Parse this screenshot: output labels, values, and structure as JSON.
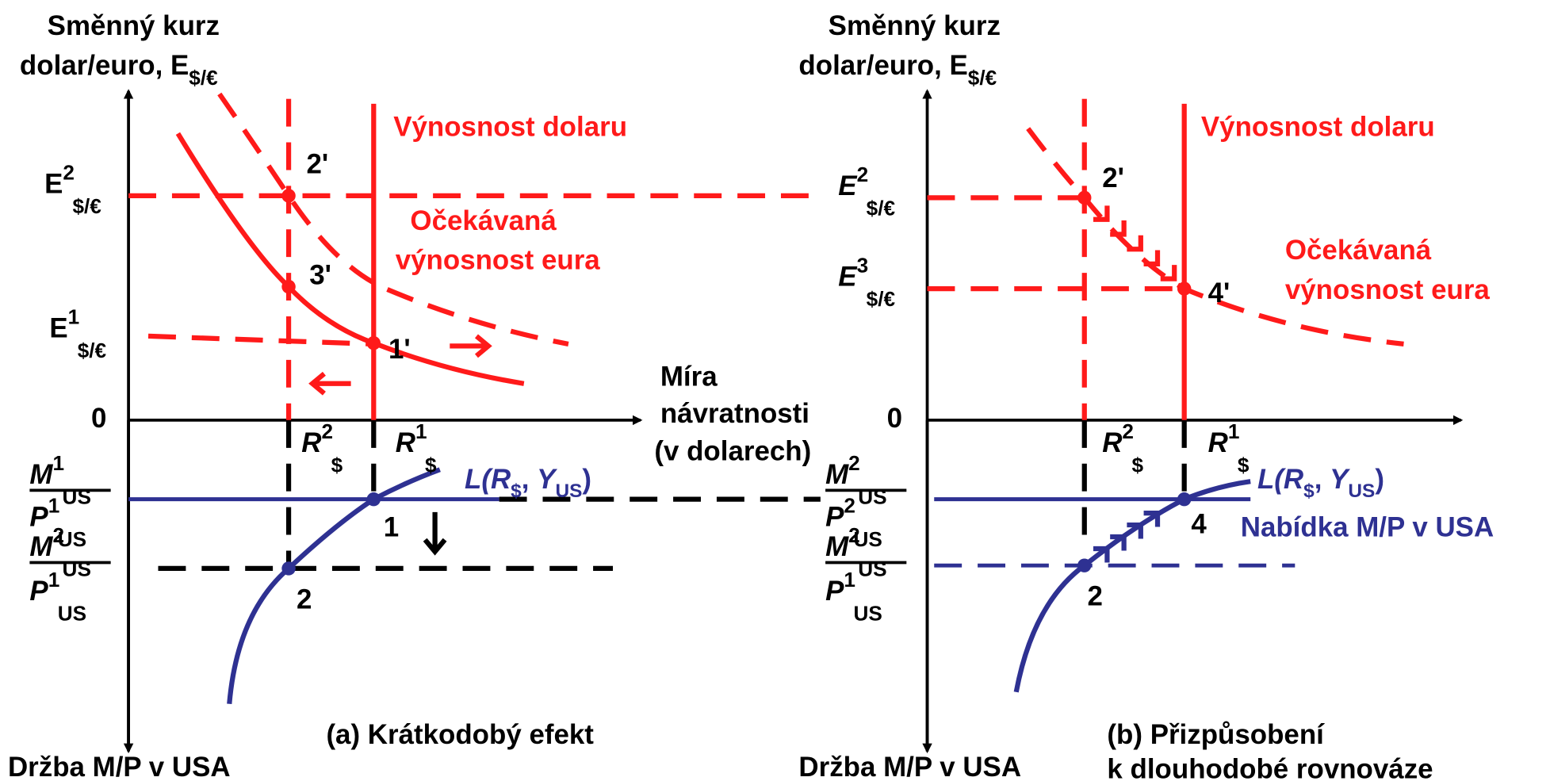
{
  "panel_a": {
    "y_axis_label": {
      "line1": "Směnný kurz",
      "line2": {
        "base": "dolar/euro, E",
        "sub": "$/€"
      }
    },
    "dollar_return": "Výnosnost dolaru",
    "euro_return": [
      "Očekávaná",
      "výnosnost eura"
    ],
    "rates": [
      {
        "base": "E",
        "sup": "2",
        "sub": "$/€"
      },
      {
        "base": "E",
        "sup": "1",
        "sub": "$/€"
      }
    ],
    "origin": "0",
    "points": [
      "2'",
      "3'",
      "1'",
      "1",
      "2"
    ],
    "x_axis_label": [
      "Míra",
      "návratnosti",
      "(v dolarech)"
    ],
    "interest": [
      {
        "base": "R",
        "sup": "2",
        "sub": "$"
      },
      {
        "base": "R",
        "sup": "1",
        "sub": "$"
      }
    ],
    "demand": {
      "pre": "L(",
      "r": "R",
      "r_sub": "$",
      "mid": ", ",
      "y": "Y",
      "y_sub": "US",
      "post": ")"
    },
    "money": [
      {
        "num": {
          "base": "M",
          "sup": "1",
          "sub": "US"
        },
        "den": {
          "base": "P",
          "sup": "1",
          "sub": "US"
        }
      },
      {
        "num": {
          "base": "M",
          "sup": "2",
          "sub": "US"
        },
        "den": {
          "base": "P",
          "sup": "1",
          "sub": "US"
        }
      }
    ],
    "caption": "(a) Krátkodobý efekt",
    "lower_axis_label": "Držba M/P v USA"
  },
  "panel_b": {
    "y_axis_label": {
      "line1": "Směnný kurz",
      "line2": {
        "base": "dolar/euro, E",
        "sub": "$/€"
      }
    },
    "dollar_return": "Výnosnost dolaru",
    "euro_return": [
      "Očekávaná",
      "výnosnost eura"
    ],
    "rates": [
      {
        "base": "E",
        "sup": "2",
        "sub": "$/€"
      },
      {
        "base": "E",
        "sup": "3",
        "sub": "$/€"
      }
    ],
    "origin": "0",
    "points": [
      "2'",
      "4'",
      "4",
      "2"
    ],
    "interest": [
      {
        "base": "R",
        "sup": "2",
        "sub": "$"
      },
      {
        "base": "R",
        "sup": "1",
        "sub": "$"
      }
    ],
    "demand": {
      "pre": "L(",
      "r": "R",
      "r_sub": "$",
      "mid": ", ",
      "y": "Y",
      "y_sub": "US",
      "post": ")"
    },
    "money": [
      {
        "num": {
          "base": "M",
          "sup": "2",
          "sub": "US"
        },
        "den": {
          "base": "P",
          "sup": "2",
          "sub": "US"
        }
      },
      {
        "num": {
          "base": "M",
          "sup": "2",
          "sub": "US"
        },
        "den": {
          "base": "P",
          "sup": "1",
          "sub": "US"
        }
      }
    ],
    "supply": "Nabídka M/P v USA",
    "caption": [
      "(b) Přizpůsobení",
      "k dlouhodobé rovnováze"
    ],
    "lower_axis_label": "Držba M/P v USA"
  }
}
